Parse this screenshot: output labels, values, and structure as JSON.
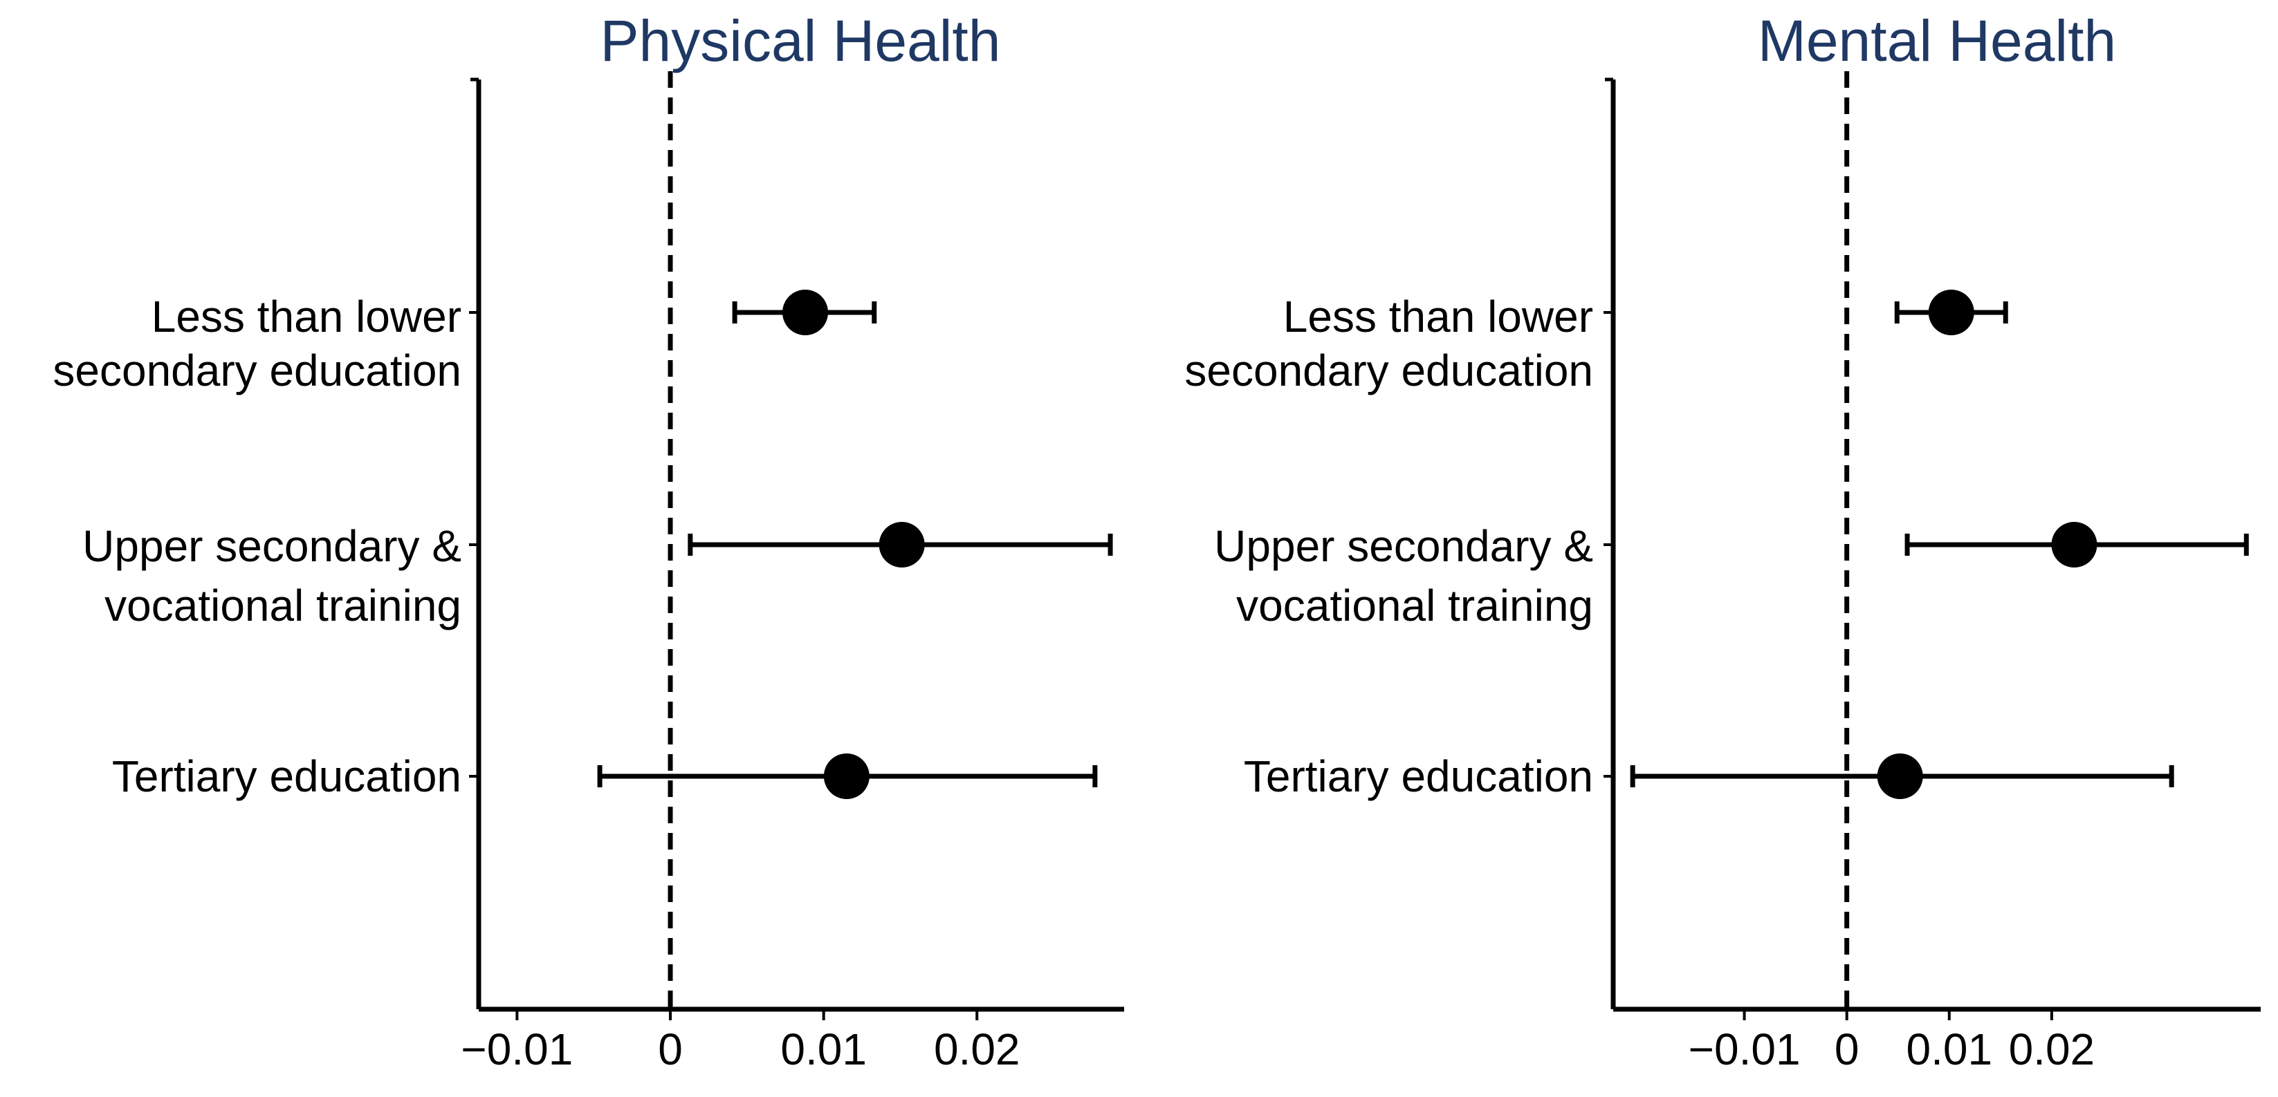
{
  "chart_data": [
    {
      "type": "scatter",
      "title": "Physical Health",
      "xlabel": "",
      "ylabel": "",
      "xlim": [
        -0.0125,
        0.0296
      ],
      "x_ticks": [
        -0.01,
        0,
        0.01,
        0.02
      ],
      "x_tick_labels": [
        "−0.01",
        "0",
        "0.01",
        "0.02"
      ],
      "reference_line": 0,
      "categories": [
        [
          "Less than lower",
          "secondary education"
        ],
        [
          "Upper secondary &",
          "vocational training"
        ],
        [
          "Tertiary education"
        ]
      ],
      "estimates": [
        0.0088,
        0.0151,
        0.0115
      ],
      "ci_low": [
        0.0042,
        0.0013,
        -0.0046
      ],
      "ci_high": [
        0.0133,
        0.0287,
        0.0277
      ],
      "grid": false,
      "legend": false
    },
    {
      "type": "scatter",
      "title": "Mental Health",
      "xlabel": "",
      "ylabel": "",
      "xlim": [
        -0.0228,
        0.0404
      ],
      "x_ticks": [
        -0.01,
        0,
        0.01,
        0.02
      ],
      "x_tick_labels": [
        "−0.01",
        "0",
        "0.01",
        "0.02"
      ],
      "reference_line": 0,
      "categories": [
        [
          "Less than lower",
          "secondary education"
        ],
        [
          "Upper secondary &",
          "vocational training"
        ],
        [
          "Tertiary education"
        ]
      ],
      "estimates": [
        0.0102,
        0.0222,
        0.0052
      ],
      "ci_low": [
        0.0049,
        0.0059,
        -0.0209
      ],
      "ci_high": [
        0.0155,
        0.039,
        0.0317
      ],
      "grid": false,
      "legend": false
    }
  ]
}
